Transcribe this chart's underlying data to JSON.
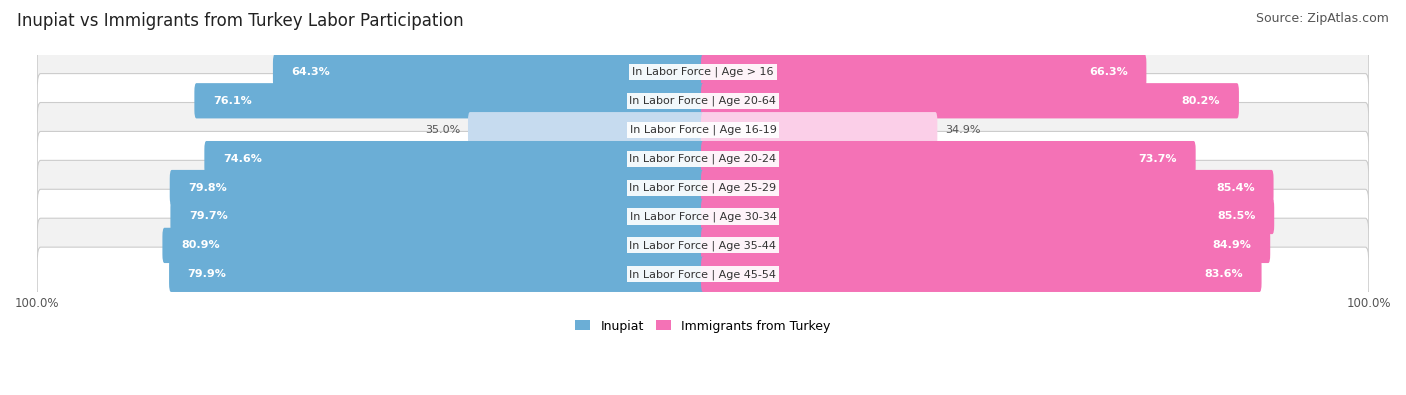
{
  "title": "Inupiat vs Immigrants from Turkey Labor Participation",
  "source": "Source: ZipAtlas.com",
  "categories": [
    "In Labor Force | Age > 16",
    "In Labor Force | Age 20-64",
    "In Labor Force | Age 16-19",
    "In Labor Force | Age 20-24",
    "In Labor Force | Age 25-29",
    "In Labor Force | Age 30-34",
    "In Labor Force | Age 35-44",
    "In Labor Force | Age 45-54"
  ],
  "inupiat_values": [
    64.3,
    76.1,
    35.0,
    74.6,
    79.8,
    79.7,
    80.9,
    79.9
  ],
  "turkey_values": [
    66.3,
    80.2,
    34.9,
    73.7,
    85.4,
    85.5,
    84.9,
    83.6
  ],
  "inupiat_color": "#6baed6",
  "inupiat_color_light": "#c6dbef",
  "turkey_color": "#f472b6",
  "turkey_color_light": "#fbcfe8",
  "row_bg_color_odd": "#f2f2f2",
  "row_bg_color_even": "#ffffff",
  "max_value": 100.0,
  "title_fontsize": 12,
  "source_fontsize": 9,
  "label_fontsize": 8,
  "value_fontsize": 8
}
